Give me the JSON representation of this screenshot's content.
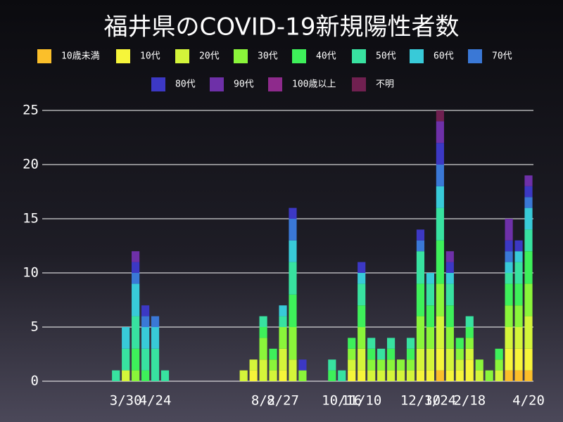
{
  "chart_data": {
    "type": "stacked-bar",
    "title": "福井県のCOVID-19新規陽性者数",
    "categories": [
      null,
      null,
      null,
      null,
      null,
      null,
      null,
      null,
      "3/30",
      null,
      null,
      "4/24",
      null,
      null,
      null,
      null,
      null,
      null,
      null,
      null,
      null,
      null,
      "8/2",
      null,
      "8/27",
      null,
      null,
      null,
      null,
      null,
      "10/16",
      null,
      "11/10",
      null,
      null,
      null,
      null,
      null,
      "12/30",
      null,
      "1/24",
      null,
      null,
      "2/18",
      null,
      null,
      null,
      null,
      null,
      "4/20"
    ],
    "series": [
      {
        "name": "10歳未満",
        "color": "#fbbf2a",
        "values": [
          0,
          0,
          0,
          0,
          0,
          0,
          0,
          0,
          0,
          0,
          0,
          0,
          0,
          0,
          0,
          0,
          0,
          0,
          0,
          0,
          0,
          0,
          0,
          0,
          0,
          0,
          0,
          0,
          0,
          0,
          0,
          0,
          0,
          0,
          0,
          0,
          0,
          0,
          0,
          0,
          1,
          0,
          0,
          0,
          0,
          0,
          0,
          1,
          1,
          1
        ]
      },
      {
        "name": "10代",
        "color": "#f6f53a",
        "values": [
          0,
          0,
          0,
          0,
          0,
          0,
          0,
          0,
          0,
          0,
          0,
          0,
          0,
          0,
          0,
          0,
          0,
          0,
          0,
          0,
          0,
          1,
          0,
          0,
          1,
          0,
          0,
          0,
          0,
          0,
          0,
          1,
          1,
          0,
          0,
          0,
          0,
          0,
          1,
          1,
          2,
          1,
          1,
          2,
          0,
          0,
          0,
          2,
          2,
          2
        ]
      },
      {
        "name": "20代",
        "color": "#d4f53a",
        "values": [
          0,
          0,
          0,
          0,
          0,
          0,
          0,
          0,
          1,
          0,
          0,
          0,
          0,
          0,
          0,
          0,
          0,
          0,
          0,
          0,
          1,
          1,
          2,
          1,
          2,
          2,
          0,
          0,
          0,
          0,
          0,
          1,
          2,
          1,
          1,
          1,
          1,
          1,
          2,
          2,
          3,
          2,
          1,
          1,
          1,
          0,
          1,
          2,
          2,
          3
        ]
      },
      {
        "name": "30代",
        "color": "#8af53a",
        "values": [
          0,
          0,
          0,
          0,
          0,
          0,
          0,
          0,
          0,
          1,
          0,
          0,
          0,
          0,
          0,
          0,
          0,
          0,
          0,
          0,
          0,
          0,
          2,
          1,
          2,
          3,
          1,
          0,
          0,
          0,
          0,
          1,
          2,
          1,
          1,
          1,
          1,
          1,
          3,
          2,
          3,
          2,
          1,
          1,
          1,
          1,
          1,
          2,
          2,
          3
        ]
      },
      {
        "name": "40代",
        "color": "#3ef05a",
        "values": [
          0,
          0,
          0,
          0,
          0,
          0,
          0,
          0,
          0,
          2,
          1,
          0,
          0,
          0,
          0,
          0,
          0,
          0,
          0,
          0,
          0,
          0,
          1,
          1,
          0,
          3,
          0,
          0,
          0,
          1,
          0,
          1,
          2,
          1,
          0,
          1,
          0,
          1,
          3,
          2,
          4,
          2,
          1,
          1,
          0,
          0,
          1,
          2,
          2,
          3
        ]
      },
      {
        "name": "50代",
        "color": "#38e2a0",
        "values": [
          0,
          0,
          0,
          0,
          0,
          0,
          0,
          1,
          2,
          3,
          2,
          3,
          1,
          0,
          0,
          0,
          0,
          0,
          0,
          0,
          0,
          0,
          1,
          0,
          1,
          3,
          0,
          0,
          0,
          1,
          1,
          0,
          2,
          1,
          1,
          1,
          0,
          1,
          3,
          2,
          3,
          2,
          0,
          1,
          0,
          0,
          0,
          1,
          2,
          2
        ]
      },
      {
        "name": "60代",
        "color": "#38cad8",
        "values": [
          0,
          0,
          0,
          0,
          0,
          0,
          0,
          0,
          2,
          3,
          2,
          2,
          0,
          0,
          0,
          0,
          0,
          0,
          0,
          0,
          0,
          0,
          0,
          0,
          1,
          2,
          0,
          0,
          0,
          0,
          0,
          0,
          1,
          0,
          0,
          0,
          0,
          0,
          0,
          1,
          2,
          1,
          0,
          0,
          0,
          0,
          0,
          1,
          1,
          2
        ]
      },
      {
        "name": "70代",
        "color": "#3a78d6",
        "values": [
          0,
          0,
          0,
          0,
          0,
          0,
          0,
          0,
          0,
          1,
          1,
          1,
          0,
          0,
          0,
          0,
          0,
          0,
          0,
          0,
          0,
          0,
          0,
          0,
          0,
          2,
          0,
          0,
          0,
          0,
          0,
          0,
          0,
          0,
          0,
          0,
          0,
          0,
          1,
          0,
          2,
          0,
          0,
          0,
          0,
          0,
          0,
          1,
          0,
          1
        ]
      },
      {
        "name": "80代",
        "color": "#3c38c4",
        "values": [
          0,
          0,
          0,
          0,
          0,
          0,
          0,
          0,
          0,
          1,
          1,
          0,
          0,
          0,
          0,
          0,
          0,
          0,
          0,
          0,
          0,
          0,
          0,
          0,
          0,
          1,
          1,
          0,
          0,
          0,
          0,
          0,
          1,
          0,
          0,
          0,
          0,
          0,
          1,
          0,
          2,
          1,
          0,
          0,
          0,
          0,
          0,
          1,
          1,
          1
        ]
      },
      {
        "name": "90代",
        "color": "#6e30a8",
        "values": [
          0,
          0,
          0,
          0,
          0,
          0,
          0,
          0,
          0,
          1,
          0,
          0,
          0,
          0,
          0,
          0,
          0,
          0,
          0,
          0,
          0,
          0,
          0,
          0,
          0,
          0,
          0,
          0,
          0,
          0,
          0,
          0,
          0,
          0,
          0,
          0,
          0,
          0,
          0,
          0,
          2,
          1,
          0,
          0,
          0,
          0,
          0,
          2,
          0,
          1
        ]
      },
      {
        "name": "100歳以上",
        "color": "#8e2a8c",
        "values": [
          0,
          0,
          0,
          0,
          0,
          0,
          0,
          0,
          0,
          0,
          0,
          0,
          0,
          0,
          0,
          0,
          0,
          0,
          0,
          0,
          0,
          0,
          0,
          0,
          0,
          0,
          0,
          0,
          0,
          0,
          0,
          0,
          0,
          0,
          0,
          0,
          0,
          0,
          0,
          0,
          0,
          0,
          0,
          0,
          0,
          0,
          0,
          0,
          0,
          0
        ]
      },
      {
        "name": "不明",
        "color": "#702050",
        "values": [
          0,
          0,
          0,
          0,
          0,
          0,
          0,
          0,
          0,
          0,
          0,
          0,
          0,
          0,
          0,
          0,
          0,
          0,
          0,
          0,
          0,
          0,
          0,
          0,
          0,
          0,
          0,
          0,
          0,
          0,
          0,
          0,
          0,
          0,
          0,
          0,
          0,
          0,
          0,
          0,
          1,
          0,
          0,
          0,
          0,
          0,
          0,
          0,
          0,
          0
        ]
      }
    ],
    "ylim": [
      0,
      25
    ],
    "yticks": [
      0,
      5,
      10,
      15,
      20,
      25
    ],
    "grid": true
  }
}
